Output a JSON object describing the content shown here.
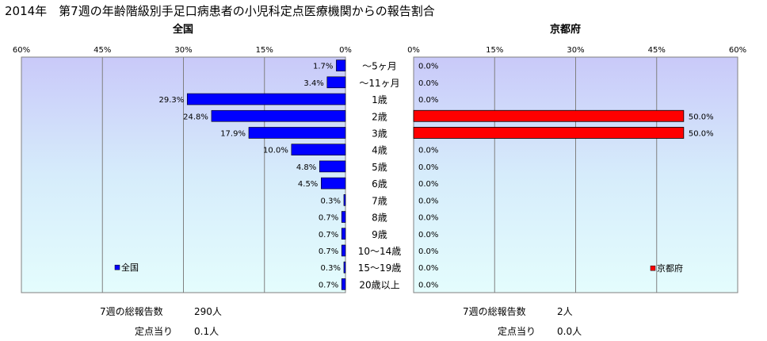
{
  "title": "2014年　第7週の年齢階級別手足口病患者の小児科定点医療機関からの報告割合",
  "chart_data": [
    {
      "type": "bar",
      "title": "全国",
      "orientation": "horizontal",
      "direction": "reversed",
      "categories": [
        "～5ヶ月",
        "～11ヶ月",
        "1歳",
        "2歳",
        "3歳",
        "4歳",
        "5歳",
        "6歳",
        "7歳",
        "8歳",
        "9歳",
        "10～14歳",
        "15～19歳",
        "20歳以上"
      ],
      "values": [
        1.7,
        3.4,
        29.3,
        24.8,
        17.9,
        10.0,
        4.8,
        4.5,
        0.3,
        0.7,
        0.7,
        0.7,
        0.3,
        0.7
      ],
      "value_labels": [
        "1.7%",
        "3.4%",
        "29.3%",
        "24.8%",
        "17.9%",
        "10.0%",
        "4.8%",
        "4.5%",
        "0.3%",
        "0.7%",
        "0.7%",
        "0.7%",
        "0.3%",
        "0.7%"
      ],
      "xlim": [
        0,
        60
      ],
      "ticks": [
        "0%",
        "15%",
        "30%",
        "45%",
        "60%"
      ],
      "color": "#0000ff",
      "legend": {
        "label": "全国",
        "position": "bottom-left"
      }
    },
    {
      "type": "bar",
      "title": "京都府",
      "orientation": "horizontal",
      "categories": [
        "～5ヶ月",
        "～11ヶ月",
        "1歳",
        "2歳",
        "3歳",
        "4歳",
        "5歳",
        "6歳",
        "7歳",
        "8歳",
        "9歳",
        "10～14歳",
        "15～19歳",
        "20歳以上"
      ],
      "values": [
        0,
        0,
        0,
        50,
        50,
        0,
        0,
        0,
        0,
        0,
        0,
        0,
        0,
        0
      ],
      "value_labels": [
        "0.0%",
        "0.0%",
        "0.0%",
        "50.0%",
        "50.0%",
        "0.0%",
        "0.0%",
        "0.0%",
        "0.0%",
        "0.0%",
        "0.0%",
        "0.0%",
        "0.0%",
        "0.0%"
      ],
      "xlim": [
        0,
        60
      ],
      "ticks": [
        "0%",
        "15%",
        "30%",
        "45%",
        "60%"
      ],
      "color": "#ff0000",
      "legend": {
        "label": "京都府",
        "position": "bottom-right"
      }
    }
  ],
  "footer": {
    "national": {
      "total_label": "7週の総報告数",
      "total_value": "290人",
      "per_label": "定点当り",
      "per_value": "0.1人"
    },
    "kyoto": {
      "total_label": "7週の総報告数",
      "total_value": "2人",
      "per_label": "定点当り",
      "per_value": "0.0人"
    }
  }
}
